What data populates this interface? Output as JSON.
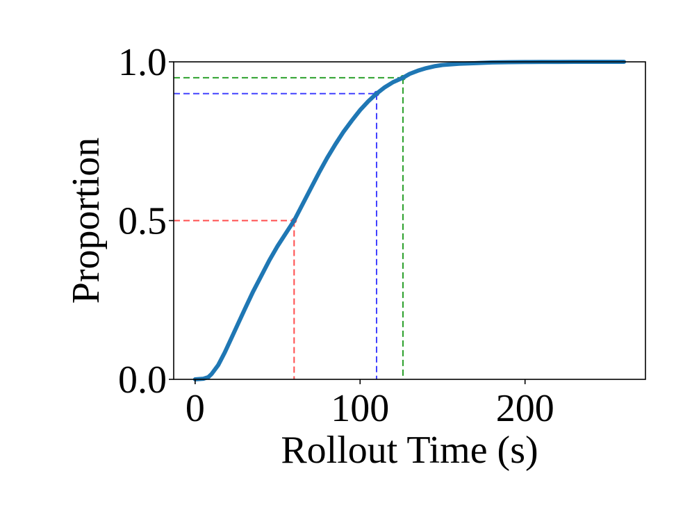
{
  "chart_data": {
    "type": "line",
    "title": "",
    "xlabel": "Rollout Time (s)",
    "ylabel": "Proportion",
    "xlim": [
      -13,
      273
    ],
    "ylim": [
      0.0,
      1.0
    ],
    "x_ticks": [
      0,
      100,
      200
    ],
    "x_tick_labels": [
      "0",
      "100",
      "200"
    ],
    "y_ticks": [
      0.0,
      0.5,
      1.0
    ],
    "y_tick_labels": [
      "0.0",
      "0.5",
      "1.0"
    ],
    "grid": false,
    "legend": "none",
    "series": [
      {
        "color": "#1f77b4",
        "x": [
          0,
          5,
          8,
          10,
          14,
          18,
          22,
          26,
          30,
          35,
          40,
          45,
          50,
          55,
          60,
          65,
          70,
          75,
          80,
          85,
          90,
          95,
          100,
          105,
          110,
          115,
          120,
          126,
          130,
          135,
          140,
          145,
          150,
          160,
          170,
          180,
          190,
          200,
          210,
          220,
          230,
          240,
          250,
          260
        ],
        "y": [
          0.0,
          0.002,
          0.007,
          0.017,
          0.045,
          0.085,
          0.13,
          0.175,
          0.22,
          0.275,
          0.325,
          0.375,
          0.42,
          0.46,
          0.5,
          0.55,
          0.6,
          0.65,
          0.697,
          0.74,
          0.78,
          0.815,
          0.848,
          0.876,
          0.9,
          0.92,
          0.936,
          0.95,
          0.962,
          0.972,
          0.98,
          0.986,
          0.99,
          0.994,
          0.996,
          0.998,
          0.999,
          0.9995,
          0.9997,
          0.9998,
          0.9999,
          1.0,
          1.0,
          1.0
        ]
      }
    ],
    "reference_lines": [
      {
        "color": "#ff4d4d",
        "x": 60,
        "y": 0.5
      },
      {
        "color": "#4040ff",
        "x": 110,
        "y": 0.9
      },
      {
        "color": "#2ca02c",
        "x": 126,
        "y": 0.95
      }
    ]
  }
}
